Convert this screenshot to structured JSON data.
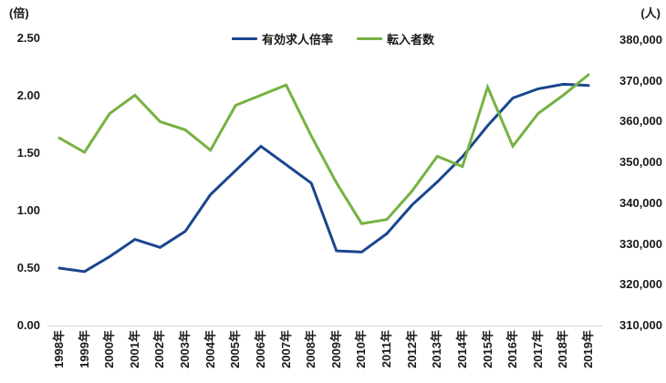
{
  "chart_data": {
    "type": "line",
    "title": "",
    "grid": "none",
    "legend_position": "top-center",
    "background": "#ffffff",
    "axis_line_color": "#d9d9d9",
    "text_color": "#1a1a1a",
    "categories": [
      "1998年",
      "1999年",
      "2000年",
      "2001年",
      "2002年",
      "2003年",
      "2004年",
      "2005年",
      "2006年",
      "2007年",
      "2008年",
      "2009年",
      "2010年",
      "2011年",
      "2012年",
      "2013年",
      "2014年",
      "2015年",
      "2016年",
      "2017年",
      "2018年",
      "2019年"
    ],
    "series": [
      {
        "name": "有効求人倍率",
        "axis": "left",
        "color": "#1a468e",
        "values": [
          0.5,
          0.47,
          0.6,
          0.75,
          0.68,
          0.82,
          1.14,
          1.35,
          1.56,
          1.4,
          1.24,
          0.65,
          0.64,
          0.8,
          1.05,
          1.25,
          1.47,
          1.74,
          1.98,
          2.06,
          2.1,
          2.09
        ]
      },
      {
        "name": "転入者数",
        "axis": "right",
        "color": "#76b243",
        "values": [
          356000,
          352500,
          362000,
          366500,
          360000,
          358000,
          353000,
          364000,
          366500,
          369000,
          356500,
          345000,
          335000,
          336000,
          343000,
          351500,
          349000,
          368500,
          354000,
          362000,
          366500,
          371500
        ]
      }
    ],
    "left_axis": {
      "title": "(倍)",
      "min": 0,
      "max": 2.5,
      "ticks": [
        "2.50",
        "2.00",
        "1.50",
        "1.00",
        "0.50",
        "0.00"
      ]
    },
    "right_axis": {
      "title": "(人)",
      "min": 310000,
      "max": 380000,
      "ticks": [
        "380,000",
        "370,000",
        "360,000",
        "350,000",
        "340,000",
        "330,000",
        "320,000",
        "310,000"
      ]
    }
  }
}
